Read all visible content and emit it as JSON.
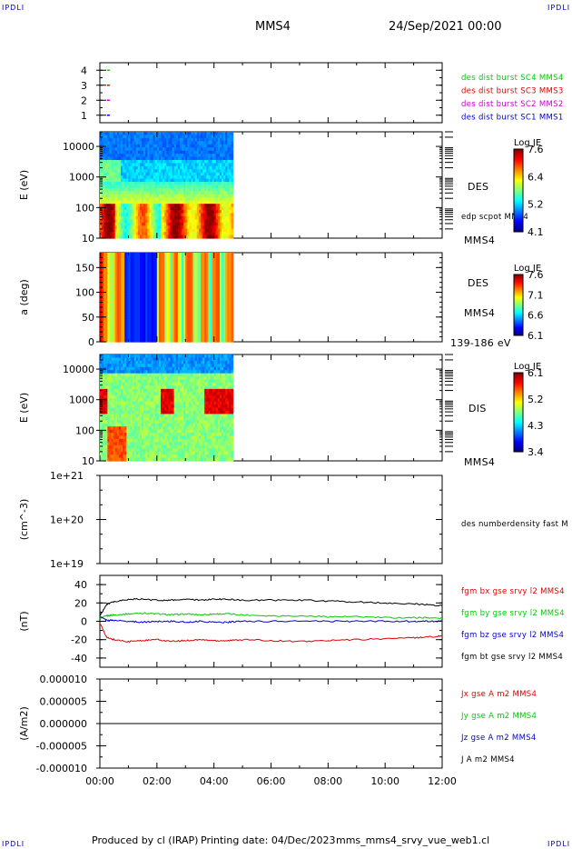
{
  "header": {
    "corner_tl": "IPDLI",
    "corner_tr": "IPDLI",
    "corner_bl": "IPDLI",
    "corner_br": "IPDLI",
    "spacecraft": "MMS4",
    "date": "24/Sep/2021 00:00"
  },
  "footer": {
    "produced": "Produced by cl (IRAP)",
    "printing": "Printing date: 04/Dec/2023",
    "file": "mms_mms4_srvy_vue_web1.cl"
  },
  "colors": {
    "red": "#dd0000",
    "green": "#00cc00",
    "blue": "#0000cc",
    "magenta": "#cc00cc",
    "black": "#000000",
    "label_blue": "#0000aa"
  },
  "chart_data": [
    {
      "type": "scatter",
      "id": "burst",
      "xlim": [
        "00:00",
        "12:00"
      ],
      "yticks": [
        "1",
        "2",
        "3",
        "4"
      ],
      "ylim": [
        0.5,
        4.5
      ],
      "series": [
        {
          "name": "des dist burst SC1 MMS1",
          "color": "#0000cc",
          "y": 1,
          "x": [
            "00:15"
          ]
        },
        {
          "name": "des dist burst SC2 MMS2",
          "color": "#cc00cc",
          "y": 2,
          "x": [
            "00:15"
          ]
        },
        {
          "name": "des dist burst SC3 MMS3",
          "color": "#dd0000",
          "y": 3,
          "x": [
            "00:15"
          ]
        },
        {
          "name": "des dist burst SC4 MMS4",
          "color": "#00cc00",
          "y": 4,
          "x": [
            "00:15"
          ]
        }
      ]
    },
    {
      "type": "heatmap",
      "id": "des_energy",
      "ylabel": "E (eV)",
      "yscale": "log",
      "ylim": [
        10,
        30000
      ],
      "yticks": [
        "10",
        "100",
        "1000",
        "10000"
      ],
      "data_end": "04:40",
      "labels": [
        "DES",
        "edp scpot MMS4",
        "MMS4"
      ],
      "colorbar": {
        "title": "Log JE",
        "ticks": [
          "7.6",
          "6.4",
          "5.2",
          "4.1"
        ]
      }
    },
    {
      "type": "heatmap",
      "id": "des_pitch",
      "ylabel": "a (deg)",
      "ylim": [
        0,
        180
      ],
      "yticks": [
        "0",
        "50",
        "100",
        "150"
      ],
      "data_end": "04:40",
      "labels": [
        "DES",
        "MMS4",
        "139-186 eV"
      ],
      "colorbar": {
        "title": "Log JE",
        "ticks": [
          "7.6",
          "7.1",
          "6.6",
          "6.1"
        ]
      }
    },
    {
      "type": "heatmap",
      "id": "dis_energy",
      "ylabel": "E (eV)",
      "yscale": "log",
      "ylim": [
        10,
        30000
      ],
      "yticks": [
        "10",
        "100",
        "1000",
        "10000"
      ],
      "data_end": "04:40",
      "labels": [
        "DIS",
        "MMS4"
      ],
      "colorbar": {
        "title": "Log JE",
        "ticks": [
          "6.1",
          "5.2",
          "4.3",
          "3.4"
        ]
      }
    },
    {
      "type": "line",
      "id": "density",
      "ylabel": "(cm^-3)",
      "yscale": "log",
      "yticks": [
        "1e+19",
        "1e+20",
        "1e+21"
      ],
      "series": [
        {
          "name": "des numberdensity fast M",
          "values": []
        }
      ]
    },
    {
      "type": "line",
      "id": "fgm",
      "ylabel": "(nT)",
      "ylim": [
        -50,
        50
      ],
      "yticks": [
        "-40",
        "-20",
        "0",
        "20",
        "40"
      ],
      "x": [
        "00:00",
        "00:15",
        "00:30",
        "01:00",
        "01:30",
        "02:00",
        "02:30",
        "03:00",
        "03:30",
        "04:00",
        "04:30",
        "05:00",
        "06:00",
        "07:00",
        "08:00",
        "09:00",
        "10:00",
        "11:00",
        "11:30",
        "12:00"
      ],
      "series": [
        {
          "name": "fgm bx gse srvy l2 MMS4",
          "color": "#dd0000",
          "values": [
            -2,
            -18,
            -20,
            -22,
            -21,
            -20,
            -22,
            -21,
            -20,
            -21,
            -21,
            -20,
            -21,
            -22,
            -21,
            -20,
            -19,
            -18,
            -17,
            -16
          ]
        },
        {
          "name": "fgm by gse srvy l2 MMS4",
          "color": "#00cc00",
          "values": [
            3,
            6,
            7,
            8,
            9,
            8,
            7,
            8,
            7,
            8,
            8,
            7,
            6,
            6,
            5,
            5,
            4,
            4,
            4,
            3
          ]
        },
        {
          "name": "fgm bz gse srvy l2 MMS4",
          "color": "#0000cc",
          "values": [
            5,
            1,
            1,
            0,
            -1,
            0,
            0,
            -1,
            0,
            -1,
            -1,
            0,
            0,
            0,
            0,
            0,
            0,
            0,
            0,
            0
          ]
        },
        {
          "name": "fgm bt gse srvy l2 MMS4",
          "color": "#000000",
          "values": [
            6,
            19,
            21,
            24,
            24,
            23,
            23,
            24,
            23,
            24,
            24,
            23,
            23,
            23,
            22,
            21,
            20,
            19,
            18,
            17
          ]
        }
      ]
    },
    {
      "type": "line",
      "id": "current",
      "ylabel": "(A/m2)",
      "ylim": [
        -1e-05,
        1e-05
      ],
      "yticks": [
        "0.000010",
        "0.000005",
        "0.000000",
        "-0.000005",
        "-0.000010"
      ],
      "xticks": [
        "00:00",
        "02:00",
        "04:00",
        "06:00",
        "08:00",
        "10:00",
        "12:00"
      ],
      "series": [
        {
          "name": "Jx gse A m2 MMS4",
          "color": "#dd0000",
          "values": [
            0
          ]
        },
        {
          "name": "Jy gse A m2 MMS4",
          "color": "#00cc00",
          "values": [
            0
          ]
        },
        {
          "name": "Jz gse A m2 MMS4",
          "color": "#0000cc",
          "values": [
            0
          ]
        },
        {
          "name": "J A m2 MMS4",
          "color": "#000000",
          "values": [
            0
          ]
        }
      ]
    }
  ]
}
